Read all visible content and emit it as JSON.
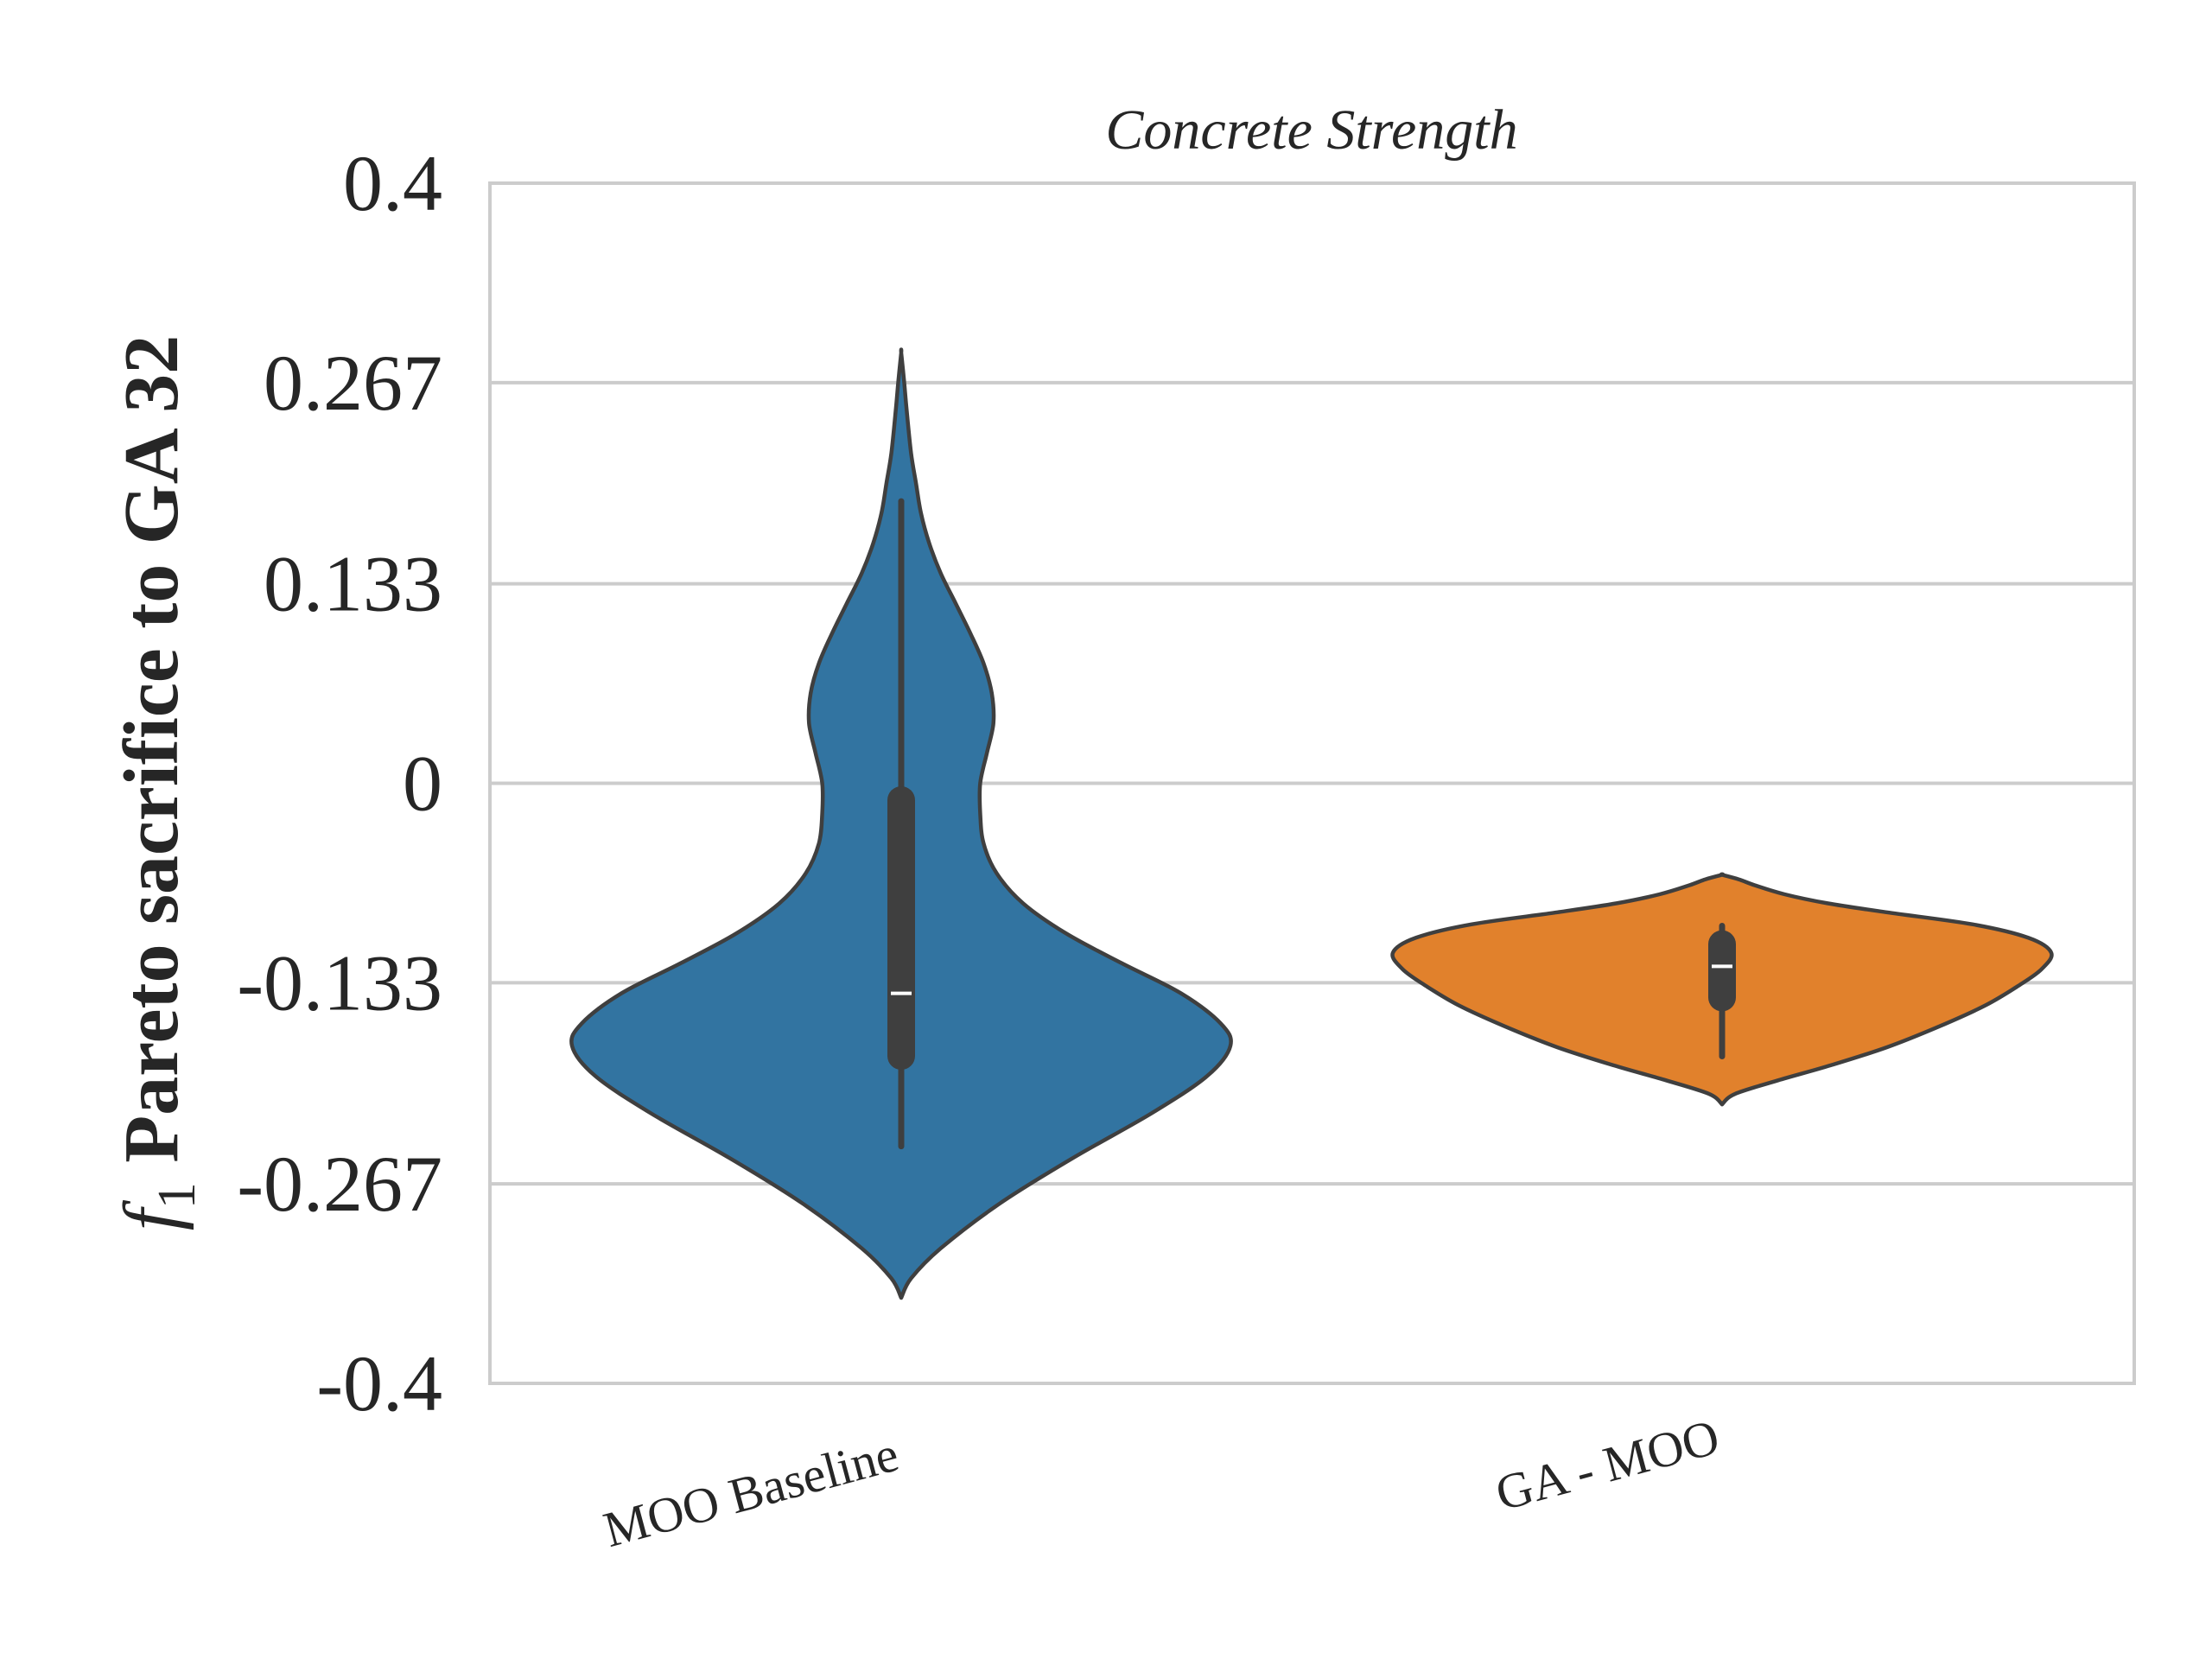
{
  "chart_data": {
    "type": "violin",
    "title": "Concrete Strength",
    "ylabel_var": "f",
    "ylabel_sub": "1",
    "ylabel_text": " Pareto sacrifice to GA 32",
    "xlabel": "",
    "ylim": [
      -0.4,
      0.4
    ],
    "yticks": [
      "0.4",
      "0.267",
      "0.133",
      "0",
      "-0.133",
      "-0.267",
      "-0.4"
    ],
    "ytick_values": [
      0.4,
      0.267,
      0.133,
      0,
      -0.133,
      -0.267,
      -0.4
    ],
    "grid": "horizontal",
    "categories": [
      "MOO Baseline",
      "GA - MOO"
    ],
    "series": [
      {
        "category": "MOO Baseline",
        "color": "#3274a1",
        "range": [
          -0.343,
          0.287
        ],
        "whisker": [
          -0.242,
          0.188
        ],
        "iqr": [
          -0.191,
          -0.002
        ],
        "median": -0.14,
        "density": [
          [
            -0.343,
            0.0
          ],
          [
            -0.33,
            0.03
          ],
          [
            -0.31,
            0.12
          ],
          [
            -0.28,
            0.3
          ],
          [
            -0.25,
            0.52
          ],
          [
            -0.22,
            0.76
          ],
          [
            -0.195,
            0.93
          ],
          [
            -0.175,
            1.0
          ],
          [
            -0.16,
            0.97
          ],
          [
            -0.14,
            0.85
          ],
          [
            -0.12,
            0.67
          ],
          [
            -0.1,
            0.5
          ],
          [
            -0.08,
            0.37
          ],
          [
            -0.06,
            0.29
          ],
          [
            -0.04,
            0.25
          ],
          [
            -0.02,
            0.24
          ],
          [
            0.0,
            0.24
          ],
          [
            0.02,
            0.26
          ],
          [
            0.04,
            0.28
          ],
          [
            0.06,
            0.275
          ],
          [
            0.08,
            0.25
          ],
          [
            0.1,
            0.21
          ],
          [
            0.12,
            0.165
          ],
          [
            0.14,
            0.12
          ],
          [
            0.16,
            0.085
          ],
          [
            0.18,
            0.06
          ],
          [
            0.2,
            0.045
          ],
          [
            0.22,
            0.03
          ],
          [
            0.25,
            0.016
          ],
          [
            0.27,
            0.008
          ],
          [
            0.287,
            0.0
          ]
        ]
      },
      {
        "category": "GA - MOO",
        "color": "#e1812c",
        "range": [
          -0.214,
          -0.061
        ],
        "whisker": [
          -0.182,
          -0.095
        ],
        "iqr": [
          -0.152,
          -0.098
        ],
        "median": -0.122,
        "density": [
          [
            -0.214,
            0.0
          ],
          [
            -0.207,
            0.04
          ],
          [
            -0.198,
            0.17
          ],
          [
            -0.188,
            0.33
          ],
          [
            -0.176,
            0.5
          ],
          [
            -0.162,
            0.66
          ],
          [
            -0.148,
            0.8
          ],
          [
            -0.135,
            0.9
          ],
          [
            -0.124,
            0.97
          ],
          [
            -0.113,
            1.0
          ],
          [
            -0.103,
            0.93
          ],
          [
            -0.094,
            0.76
          ],
          [
            -0.086,
            0.5
          ],
          [
            -0.08,
            0.32
          ],
          [
            -0.074,
            0.19
          ],
          [
            -0.068,
            0.1
          ],
          [
            -0.064,
            0.05
          ],
          [
            -0.061,
            0.0
          ]
        ]
      }
    ]
  }
}
